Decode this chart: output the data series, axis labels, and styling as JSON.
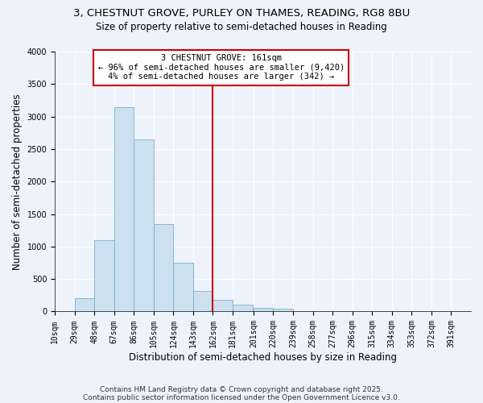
{
  "title": "3, CHESTNUT GROVE, PURLEY ON THAMES, READING, RG8 8BU",
  "subtitle": "Size of property relative to semi-detached houses in Reading",
  "xlabel": "Distribution of semi-detached houses by size in Reading",
  "ylabel": "Number of semi-detached properties",
  "footnote1": "Contains HM Land Registry data © Crown copyright and database right 2025.",
  "footnote2": "Contains public sector information licensed under the Open Government Licence v3.0.",
  "bin_labels": [
    "10sqm",
    "29sqm",
    "48sqm",
    "67sqm",
    "86sqm",
    "105sqm",
    "124sqm",
    "143sqm",
    "162sqm",
    "181sqm",
    "201sqm",
    "220sqm",
    "239sqm",
    "258sqm",
    "277sqm",
    "296sqm",
    "315sqm",
    "334sqm",
    "353sqm",
    "372sqm",
    "391sqm"
  ],
  "bin_edges": [
    10,
    29,
    48,
    67,
    86,
    105,
    124,
    143,
    162,
    181,
    201,
    220,
    239,
    258,
    277,
    296,
    315,
    334,
    353,
    372,
    391
  ],
  "bar_heights": [
    0,
    200,
    1100,
    3150,
    2650,
    1350,
    750,
    310,
    175,
    100,
    60,
    40,
    0,
    0,
    0,
    0,
    0,
    0,
    0,
    0
  ],
  "bar_color": "#cce0ef",
  "bar_edge_color": "#7ab0cc",
  "vline_x": 162,
  "vline_color": "#cc0000",
  "annotation_title": "3 CHESTNUT GROVE: 161sqm",
  "annotation_line1": "← 96% of semi-detached houses are smaller (9,420)",
  "annotation_line2": "4% of semi-detached houses are larger (342) →",
  "annotation_box_color": "#ffffff",
  "annotation_box_edge_color": "#cc0000",
  "ylim": [
    0,
    4000
  ],
  "yticks": [
    0,
    500,
    1000,
    1500,
    2000,
    2500,
    3000,
    3500,
    4000
  ],
  "background_color": "#eef2fb",
  "grid_color": "#ffffff",
  "title_fontsize": 9.5,
  "subtitle_fontsize": 8.5,
  "axis_label_fontsize": 8.5,
  "tick_fontsize": 7,
  "annotation_fontsize": 7.5,
  "footnote_fontsize": 6.5
}
